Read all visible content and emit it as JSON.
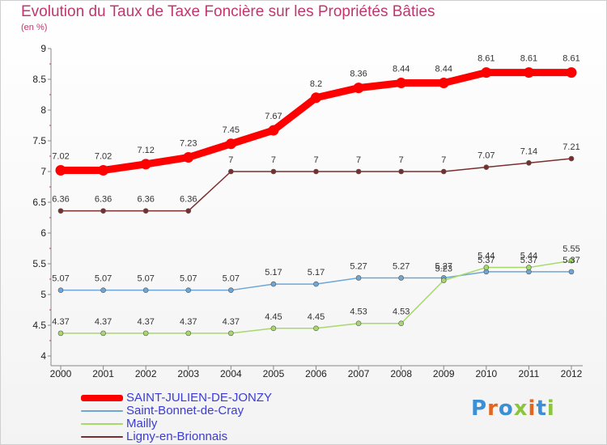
{
  "header": {
    "title": "Evolution du Taux de Taxe Foncière sur les Propriétés Bâties",
    "subtitle": "(en %)"
  },
  "logo": {
    "text": "Proxiti",
    "colors": [
      "#3a8fd6",
      "#e2661f",
      "#3a8fd6",
      "#8bc53f",
      "#e2661f",
      "#3a8fd6",
      "#8bc53f"
    ]
  },
  "chart_data": {
    "type": "line",
    "x": [
      "2000",
      "2001",
      "2002",
      "2003",
      "2004",
      "2005",
      "2006",
      "2007",
      "2008",
      "2009",
      "2010",
      "2011",
      "2012"
    ],
    "ylim": [
      4,
      9
    ],
    "yticks": [
      "4",
      "4.5",
      "5",
      "5.5",
      "6",
      "6.5",
      "7",
      "7.5",
      "8",
      "8.5",
      "9"
    ],
    "grid": false,
    "legend_position": "bottom-left",
    "series": [
      {
        "name": "SAINT-JULIEN-DE-JONZY",
        "color": "#ff0000",
        "values": [
          7.02,
          7.02,
          7.12,
          7.23,
          7.45,
          7.67,
          8.2,
          8.36,
          8.44,
          8.44,
          8.61,
          8.61,
          8.61
        ],
        "labels": [
          "7.02",
          "7.02",
          "7.12",
          "7.23",
          "7.45",
          "7.67",
          "8.2",
          "8.36",
          "8.44",
          "8.44",
          "8.61",
          "8.61",
          "8.61"
        ]
      },
      {
        "name": "Saint-Bonnet-de-Cray",
        "color": "#6ea6d6",
        "values": [
          5.07,
          5.07,
          5.07,
          5.07,
          5.07,
          5.17,
          5.17,
          5.27,
          5.27,
          5.27,
          5.37,
          5.37,
          5.37
        ],
        "labels": [
          "5.07",
          "5.07",
          "5.07",
          "5.07",
          "5.07",
          "5.17",
          "5.17",
          "5.27",
          "5.27",
          "5.27",
          "5.37",
          "5.37",
          "5.37"
        ]
      },
      {
        "name": "Mailly",
        "color": "#a6d96a",
        "values": [
          4.37,
          4.37,
          4.37,
          4.37,
          4.37,
          4.45,
          4.45,
          4.53,
          4.53,
          5.23,
          5.44,
          5.44,
          5.55
        ],
        "labels": [
          "4.37",
          "4.37",
          "4.37",
          "4.37",
          "4.37",
          "4.45",
          "4.45",
          "4.53",
          "4.53",
          "5.23",
          "5.44",
          "5.44",
          "5.55"
        ]
      },
      {
        "name": "Ligny-en-Brionnais",
        "color": "#7a2e2e",
        "values": [
          6.36,
          6.36,
          6.36,
          6.36,
          7,
          7,
          7,
          7,
          7,
          7,
          7.07,
          7.14,
          7.21
        ],
        "labels": [
          "6.36",
          "6.36",
          "6.36",
          "6.36",
          "7",
          "7",
          "7",
          "7",
          "7",
          "7",
          "7.07",
          "7.14",
          "7.21"
        ]
      }
    ]
  }
}
